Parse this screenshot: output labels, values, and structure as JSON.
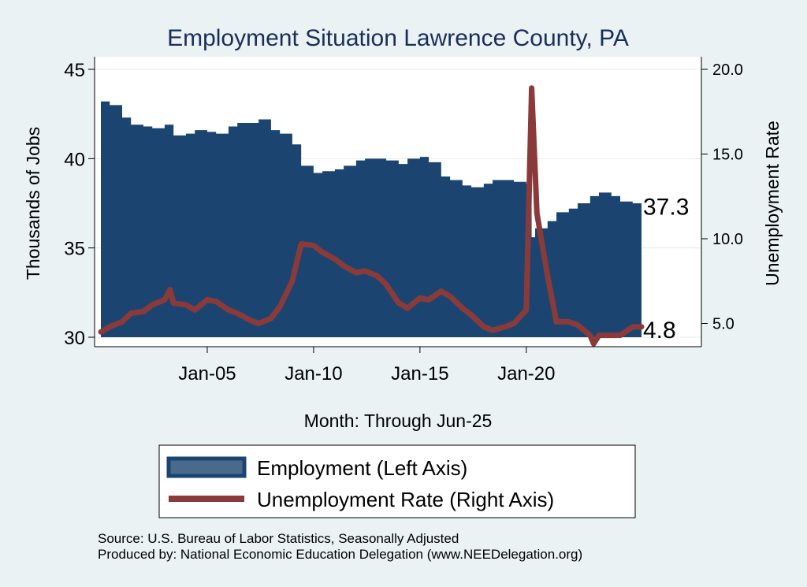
{
  "chart_data": {
    "type": "area",
    "title": "Employment Situation Lawrence  County, PA",
    "xlabel": "Month: Through Jun-25",
    "ylabel_left": "Thousands of Jobs",
    "ylabel_right": "Unemployment Rate",
    "x_range": [
      "2000-01",
      "2025-06"
    ],
    "xticks": [
      {
        "date": "2005-01",
        "label": "Jan-05"
      },
      {
        "date": "2010-01",
        "label": "Jan-10"
      },
      {
        "date": "2015-01",
        "label": "Jan-15"
      },
      {
        "date": "2020-01",
        "label": "Jan-20"
      }
    ],
    "ylim_left": [
      30,
      45
    ],
    "yticks_left": [
      "30",
      "35",
      "40",
      "45"
    ],
    "ylim_right": [
      3.5,
      20
    ],
    "yticks_right": [
      "5.0",
      "10.0",
      "15.0",
      "20.0"
    ],
    "series": [
      {
        "name": "Employment (Left Axis)",
        "kind": "area",
        "axis": "left",
        "color": "#1b4570",
        "points": [
          [
            "2000-01",
            43.2
          ],
          [
            "2000-06",
            43.0
          ],
          [
            "2001-01",
            42.3
          ],
          [
            "2001-06",
            41.9
          ],
          [
            "2002-01",
            41.8
          ],
          [
            "2002-06",
            41.7
          ],
          [
            "2003-01",
            41.9
          ],
          [
            "2003-06",
            41.3
          ],
          [
            "2004-01",
            41.4
          ],
          [
            "2004-06",
            41.6
          ],
          [
            "2005-01",
            41.5
          ],
          [
            "2005-06",
            41.4
          ],
          [
            "2006-01",
            41.8
          ],
          [
            "2006-06",
            42.0
          ],
          [
            "2007-01",
            42.0
          ],
          [
            "2007-06",
            42.2
          ],
          [
            "2008-01",
            41.6
          ],
          [
            "2008-06",
            41.4
          ],
          [
            "2009-01",
            40.8
          ],
          [
            "2009-06",
            39.6
          ],
          [
            "2010-01",
            39.2
          ],
          [
            "2010-06",
            39.3
          ],
          [
            "2011-01",
            39.4
          ],
          [
            "2011-06",
            39.6
          ],
          [
            "2012-01",
            39.9
          ],
          [
            "2012-06",
            40.0
          ],
          [
            "2013-01",
            40.0
          ],
          [
            "2013-06",
            39.9
          ],
          [
            "2014-01",
            39.7
          ],
          [
            "2014-06",
            40.0
          ],
          [
            "2015-01",
            40.1
          ],
          [
            "2015-06",
            39.8
          ],
          [
            "2016-01",
            39.0
          ],
          [
            "2016-06",
            38.8
          ],
          [
            "2017-01",
            38.5
          ],
          [
            "2017-06",
            38.4
          ],
          [
            "2018-01",
            38.6
          ],
          [
            "2018-06",
            38.8
          ],
          [
            "2019-01",
            38.8
          ],
          [
            "2019-06",
            38.7
          ],
          [
            "2020-01",
            38.6
          ],
          [
            "2020-03",
            37.9
          ],
          [
            "2020-04",
            35.6
          ],
          [
            "2020-06",
            36.1
          ],
          [
            "2021-01",
            36.5
          ],
          [
            "2021-06",
            37.0
          ],
          [
            "2022-01",
            37.2
          ],
          [
            "2022-06",
            37.5
          ],
          [
            "2023-01",
            37.9
          ],
          [
            "2023-06",
            38.1
          ],
          [
            "2024-01",
            37.9
          ],
          [
            "2024-06",
            37.6
          ],
          [
            "2025-01",
            37.5
          ],
          [
            "2025-06",
            37.3
          ]
        ]
      },
      {
        "name": "Unemployment Rate (Right Axis)",
        "kind": "line",
        "axis": "right",
        "color": "#8b3a3a",
        "points": [
          [
            "2000-01",
            4.5
          ],
          [
            "2000-06",
            4.8
          ],
          [
            "2001-01",
            5.1
          ],
          [
            "2001-06",
            5.6
          ],
          [
            "2002-01",
            5.7
          ],
          [
            "2002-06",
            6.1
          ],
          [
            "2003-01",
            6.4
          ],
          [
            "2003-04",
            7.0
          ],
          [
            "2003-06",
            6.2
          ],
          [
            "2004-01",
            6.1
          ],
          [
            "2004-06",
            5.8
          ],
          [
            "2005-01",
            6.4
          ],
          [
            "2005-06",
            6.3
          ],
          [
            "2006-01",
            5.8
          ],
          [
            "2006-06",
            5.6
          ],
          [
            "2007-01",
            5.2
          ],
          [
            "2007-06",
            5.0
          ],
          [
            "2008-01",
            5.3
          ],
          [
            "2008-06",
            6.0
          ],
          [
            "2009-01",
            7.5
          ],
          [
            "2009-06",
            9.7
          ],
          [
            "2010-01",
            9.6
          ],
          [
            "2010-06",
            9.2
          ],
          [
            "2011-01",
            8.8
          ],
          [
            "2011-06",
            8.4
          ],
          [
            "2012-01",
            8.0
          ],
          [
            "2012-06",
            8.1
          ],
          [
            "2013-01",
            7.8
          ],
          [
            "2013-06",
            7.3
          ],
          [
            "2014-01",
            6.2
          ],
          [
            "2014-06",
            5.9
          ],
          [
            "2015-01",
            6.5
          ],
          [
            "2015-06",
            6.4
          ],
          [
            "2016-01",
            6.9
          ],
          [
            "2016-06",
            6.6
          ],
          [
            "2017-01",
            5.9
          ],
          [
            "2017-06",
            5.5
          ],
          [
            "2018-01",
            4.8
          ],
          [
            "2018-06",
            4.6
          ],
          [
            "2019-01",
            4.8
          ],
          [
            "2019-06",
            5.0
          ],
          [
            "2020-01",
            5.8
          ],
          [
            "2020-04",
            18.9
          ],
          [
            "2020-07",
            11.5
          ],
          [
            "2021-01",
            7.8
          ],
          [
            "2021-06",
            5.1
          ],
          [
            "2022-01",
            5.1
          ],
          [
            "2022-06",
            4.9
          ],
          [
            "2023-01",
            4.3
          ],
          [
            "2023-03",
            3.8
          ],
          [
            "2023-06",
            4.3
          ],
          [
            "2024-01",
            4.3
          ],
          [
            "2024-06",
            4.3
          ],
          [
            "2025-01",
            4.8
          ],
          [
            "2025-06",
            4.8
          ]
        ]
      }
    ],
    "end_labels": {
      "employment": "37.3",
      "unemployment": "4.8"
    },
    "legend": {
      "placement": "bottom",
      "items": [
        "Employment (Left Axis)",
        "Unemployment Rate (Right Axis)"
      ]
    },
    "grid": "horizontal",
    "plot_background": "#ffffff",
    "page_background": "#eaf2f3"
  },
  "footer": {
    "source": "Source: U.S. Bureau of Labor Statistics, Seasonally Adjusted",
    "produced_by": "Produced by: National Economic Education Delegation (www.NEEDelegation.org)"
  }
}
